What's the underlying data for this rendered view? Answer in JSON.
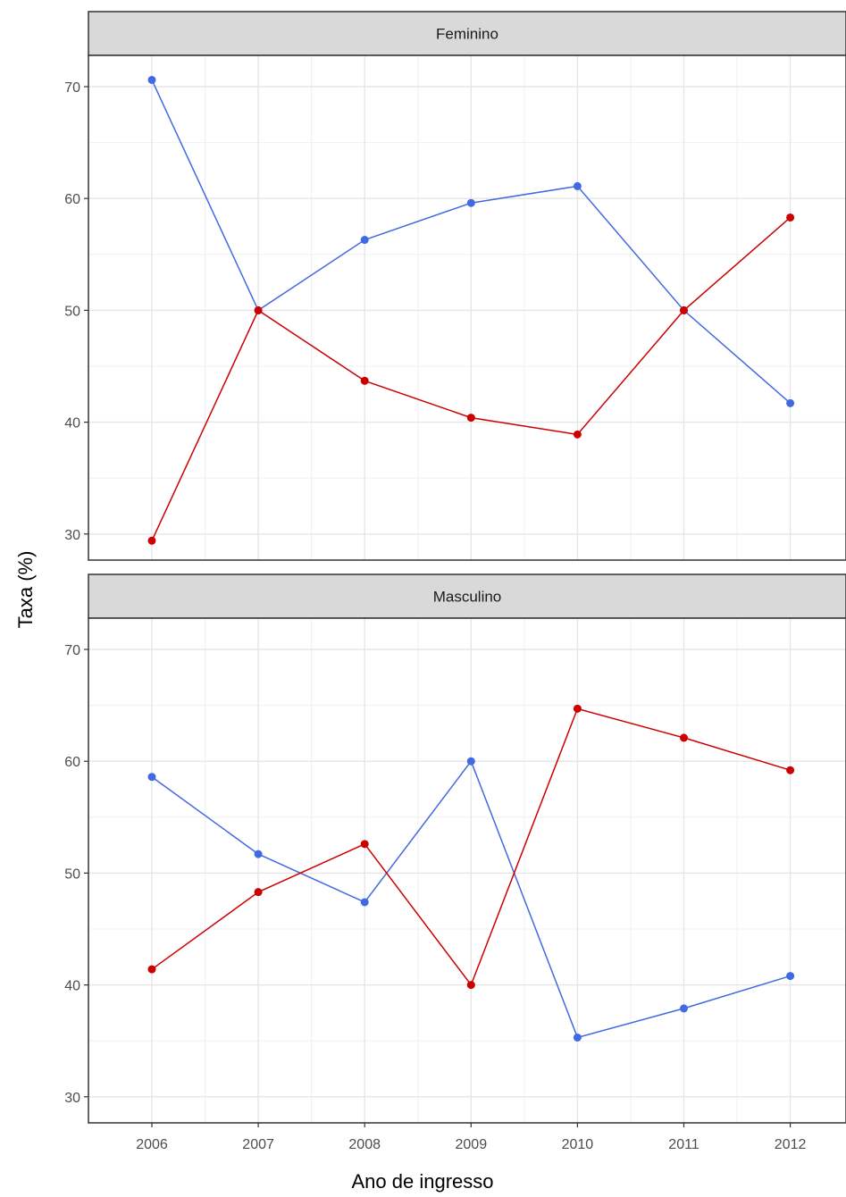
{
  "chart_data": {
    "type": "line",
    "facet_layout": "vertical",
    "xlabel": "Ano de ingresso",
    "ylabel": "Taxa (%)",
    "x": [
      2006,
      2007,
      2008,
      2009,
      2010,
      2011,
      2012
    ],
    "ylim": [
      27.5,
      73
    ],
    "yticks": [
      30,
      40,
      50,
      60,
      70
    ],
    "grid": true,
    "legend": "none",
    "series_colors": [
      "#4169E1",
      "#CC0000"
    ],
    "panels": [
      {
        "title": "Feminino",
        "series": [
          {
            "color": "#4169E1",
            "values": [
              70.6,
              50.0,
              56.3,
              59.6,
              61.1,
              50.0,
              41.7
            ]
          },
          {
            "color": "#CC0000",
            "values": [
              29.4,
              50.0,
              43.7,
              40.4,
              38.9,
              50.0,
              58.3
            ]
          }
        ]
      },
      {
        "title": "Masculino",
        "series": [
          {
            "color": "#4169E1",
            "values": [
              58.6,
              51.7,
              47.4,
              60.0,
              35.3,
              37.9,
              40.8
            ]
          },
          {
            "color": "#CC0000",
            "values": [
              41.4,
              48.3,
              52.6,
              40.0,
              64.7,
              62.1,
              59.2
            ]
          }
        ]
      }
    ]
  }
}
